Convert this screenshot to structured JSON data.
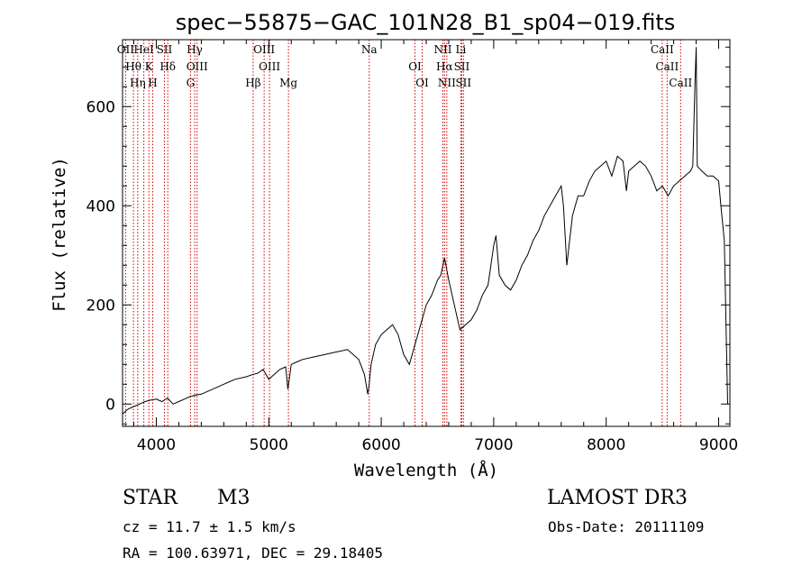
{
  "chart_data": {
    "type": "line",
    "title": "spec−55875−GAC_101N28_B1_sp04−019.fits",
    "xlabel": "Wavelength (Å)",
    "ylabel": "Flux (relative)",
    "xlim": [
      3700,
      9100
    ],
    "ylim": [
      -45,
      735
    ],
    "xticks": [
      4000,
      5000,
      6000,
      7000,
      8000,
      9000
    ],
    "yticks": [
      0,
      200,
      400,
      600
    ],
    "series": [
      {
        "name": "flux",
        "x": [
          3700,
          3750,
          3800,
          3850,
          3900,
          3950,
          4000,
          4050,
          4100,
          4150,
          4200,
          4250,
          4300,
          4350,
          4400,
          4500,
          4600,
          4700,
          4800,
          4860,
          4900,
          4950,
          5000,
          5050,
          5100,
          5150,
          5170,
          5200,
          5250,
          5300,
          5400,
          5500,
          5600,
          5700,
          5800,
          5850,
          5880,
          5893,
          5910,
          5950,
          6000,
          6050,
          6100,
          6150,
          6200,
          6250,
          6300,
          6350,
          6400,
          6450,
          6500,
          6530,
          6563,
          6600,
          6650,
          6700,
          6750,
          6800,
          6850,
          6900,
          6950,
          7000,
          7020,
          7050,
          7100,
          7150,
          7200,
          7250,
          7300,
          7350,
          7400,
          7450,
          7500,
          7550,
          7600,
          7620,
          7650,
          7670,
          7700,
          7750,
          7800,
          7850,
          7900,
          7950,
          8000,
          8050,
          8100,
          8150,
          8180,
          8200,
          8250,
          8300,
          8350,
          8400,
          8450,
          8500,
          8550,
          8600,
          8650,
          8700,
          8750,
          8770,
          8790,
          8800,
          8810,
          8850,
          8900,
          8950,
          9000,
          9020,
          9050,
          9080
        ],
        "values": [
          -20,
          -10,
          -5,
          0,
          5,
          8,
          10,
          5,
          12,
          0,
          5,
          10,
          15,
          18,
          20,
          30,
          40,
          50,
          55,
          60,
          62,
          70,
          50,
          60,
          70,
          75,
          30,
          80,
          85,
          90,
          95,
          100,
          105,
          110,
          90,
          60,
          20,
          40,
          80,
          120,
          140,
          150,
          160,
          140,
          100,
          80,
          120,
          160,
          200,
          220,
          250,
          260,
          295,
          250,
          200,
          150,
          160,
          170,
          190,
          220,
          240,
          320,
          340,
          260,
          240,
          230,
          250,
          280,
          300,
          330,
          350,
          380,
          400,
          420,
          440,
          400,
          280,
          320,
          380,
          420,
          420,
          450,
          470,
          480,
          490,
          460,
          500,
          490,
          430,
          470,
          480,
          490,
          480,
          460,
          430,
          440,
          420,
          440,
          450,
          460,
          470,
          480,
          650,
          720,
          480,
          470,
          460,
          460,
          450,
          400,
          330,
          0
        ]
      }
    ],
    "line_markers": [
      {
        "label": "OII",
        "x": 3727
      },
      {
        "label": "Hθ",
        "x": 3797
      },
      {
        "label": "Hη",
        "x": 3835
      },
      {
        "label": "HeI",
        "x": 3889
      },
      {
        "label": "K",
        "x": 3934
      },
      {
        "label": "H",
        "x": 3968
      },
      {
        "label": "SII",
        "x": 4072
      },
      {
        "label": "Hδ",
        "x": 4102
      },
      {
        "label": "G",
        "x": 4304
      },
      {
        "label": "Hγ",
        "x": 4341
      },
      {
        "label": "OIII",
        "x": 4363
      },
      {
        "label": "Hβ",
        "x": 4861
      },
      {
        "label": "OIII",
        "x": 4959
      },
      {
        "label": "OIII",
        "x": 5007
      },
      {
        "label": "Mg",
        "x": 5175
      },
      {
        "label": "Na",
        "x": 5893
      },
      {
        "label": "OI",
        "x": 6300
      },
      {
        "label": "OI",
        "x": 6364
      },
      {
        "label": "NII",
        "x": 6548
      },
      {
        "label": "Hα",
        "x": 6563
      },
      {
        "label": "NII",
        "x": 6583
      },
      {
        "label": "Li",
        "x": 6708
      },
      {
        "label": "SII",
        "x": 6716
      },
      {
        "label": "SII",
        "x": 6731
      },
      {
        "label": "CaII",
        "x": 8498
      },
      {
        "label": "CaII",
        "x": 8542
      },
      {
        "label": "CaII",
        "x": 8662
      }
    ]
  },
  "info": {
    "object_class": "STAR",
    "subclass": "M3",
    "survey": "LAMOST DR3",
    "cz": "cz = 11.7 ± 1.5 km/s",
    "obs_date": "Obs-Date: 20111109",
    "coords": "RA = 100.63971, DEC =  29.18405"
  }
}
